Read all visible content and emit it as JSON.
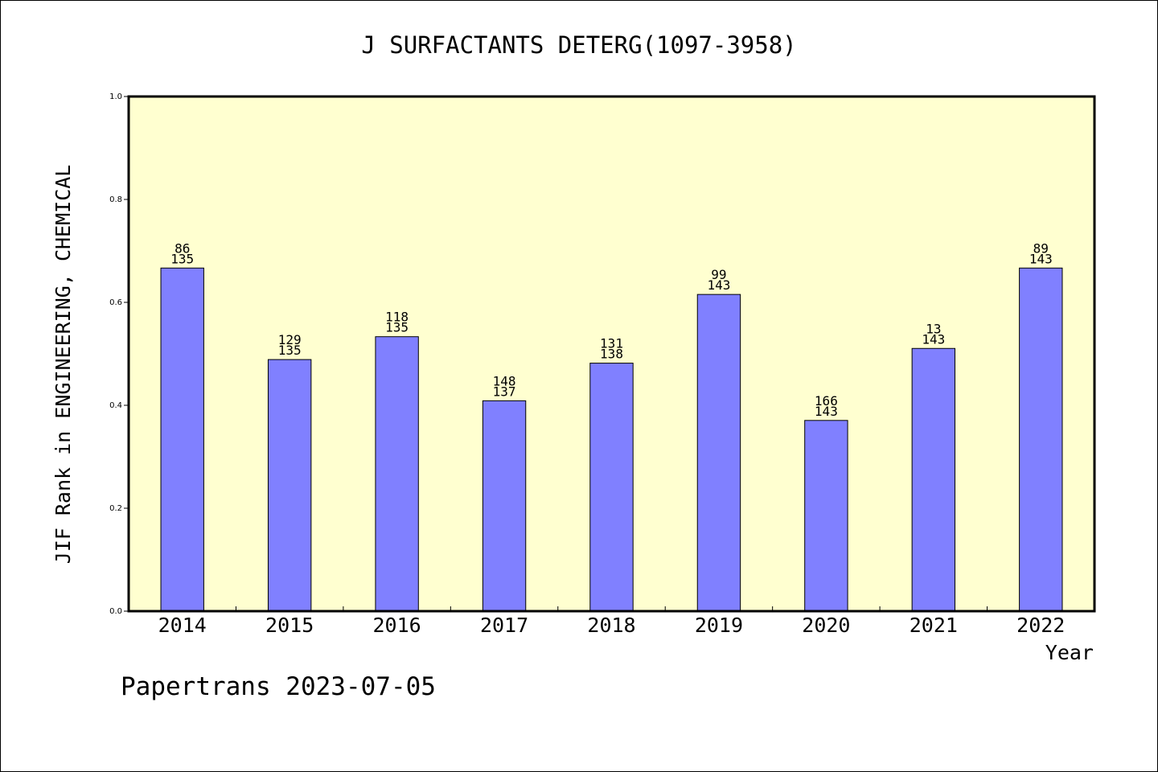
{
  "chart_data": {
    "type": "bar",
    "title": "J SURFACTANTS DETERG(1097-3958)",
    "xlabel": "Year",
    "ylabel": "JIF Rank in ENGINEERING, CHEMICAL",
    "categories": [
      "2014",
      "2015",
      "2016",
      "2017",
      "2018",
      "2019",
      "2020",
      "2021",
      "2022"
    ],
    "values": [
      0.6667,
      0.4889,
      0.5333,
      0.4088,
      0.4819,
      0.6154,
      0.3706,
      0.5105,
      0.6667
    ],
    "rank_labels": [
      "86",
      "129",
      "118",
      "148",
      "131",
      "99",
      "166",
      "13",
      "89"
    ],
    "total_labels": [
      "135",
      "135",
      "135",
      "137",
      "138",
      "143",
      "143",
      "143",
      "143"
    ],
    "ylim": [
      0,
      1.0
    ],
    "yticks": [
      "0.0",
      "0.2",
      "0.4",
      "0.6",
      "0.8",
      "1.0"
    ],
    "ytick_values": [
      0,
      0.2,
      0.4,
      0.6,
      0.8,
      1.0
    ],
    "grid": false,
    "colors": {
      "plot_bg": "#ffffd0",
      "bar": "#8080ff",
      "axis": "#000000"
    }
  },
  "footer": {
    "text": "Papertrans 2023-07-05"
  }
}
